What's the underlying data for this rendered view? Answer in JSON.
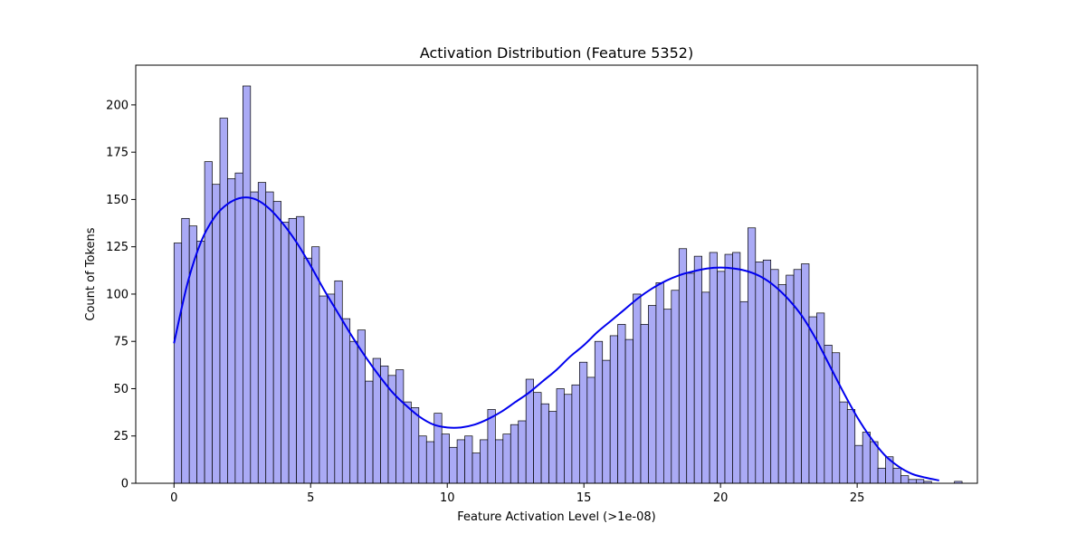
{
  "chart_data": {
    "type": "bar",
    "title": "Activation Distribution (Feature 5352)",
    "xlabel": "Feature Activation Level (>1e-08)",
    "ylabel": "Count of Tokens",
    "xlim": [
      -1.4,
      29.4
    ],
    "ylim": [
      0,
      221
    ],
    "xticks": [
      0,
      5,
      10,
      15,
      20,
      25
    ],
    "yticks": [
      0,
      25,
      50,
      75,
      100,
      125,
      150,
      175,
      200
    ],
    "bin_width": 0.28,
    "bin_start": 0,
    "bar_color": "#aaaaf5",
    "bar_edge_color": "#000000",
    "kde_color": "#0000ee",
    "grid": false,
    "legend": "none",
    "counts": [
      127,
      140,
      136,
      128,
      170,
      158,
      193,
      161,
      164,
      210,
      154,
      159,
      154,
      149,
      138,
      140,
      141,
      119,
      125,
      99,
      100,
      107,
      87,
      75,
      81,
      54,
      66,
      62,
      57,
      60,
      43,
      40,
      25,
      22,
      37,
      26,
      19,
      23,
      25,
      16,
      23,
      39,
      23,
      26,
      31,
      33,
      55,
      48,
      42,
      38,
      50,
      47,
      52,
      64,
      56,
      75,
      65,
      78,
      84,
      76,
      100,
      84,
      94,
      106,
      92,
      102,
      124,
      111,
      120,
      101,
      122,
      112,
      121,
      122,
      96,
      135,
      117,
      118,
      113,
      105,
      110,
      113,
      116,
      88,
      90,
      73,
      69,
      43,
      39,
      20,
      27,
      22,
      8,
      14,
      8,
      4,
      2,
      2,
      1,
      0,
      0,
      0,
      1
    ],
    "kde": {
      "x": [
        0,
        0.5,
        1,
        1.5,
        2,
        2.5,
        3,
        3.5,
        4,
        4.5,
        5,
        5.5,
        6,
        6.5,
        7,
        7.5,
        8,
        8.5,
        9,
        9.5,
        10,
        10.5,
        11,
        11.5,
        12,
        12.5,
        13,
        13.5,
        14,
        14.5,
        15,
        15.5,
        16,
        16.5,
        17,
        17.5,
        18,
        18.5,
        19,
        19.5,
        20,
        20.5,
        21,
        21.5,
        22,
        22.5,
        23,
        23.5,
        24,
        24.5,
        25,
        25.5,
        26,
        26.5,
        27,
        27.5,
        28
      ],
      "y": [
        74,
        106,
        128,
        141,
        148,
        151,
        150,
        145,
        137,
        127,
        115,
        102,
        90,
        78,
        67,
        57,
        48,
        41,
        35,
        31,
        29.5,
        29.5,
        31,
        34,
        38,
        43,
        48,
        54,
        60,
        67,
        73,
        80,
        86,
        92,
        98,
        103,
        107,
        110,
        112,
        113.5,
        114,
        113.5,
        112,
        109,
        104,
        97,
        88,
        76,
        62,
        48,
        35,
        24,
        15,
        9,
        5,
        3,
        1.5
      ]
    }
  }
}
